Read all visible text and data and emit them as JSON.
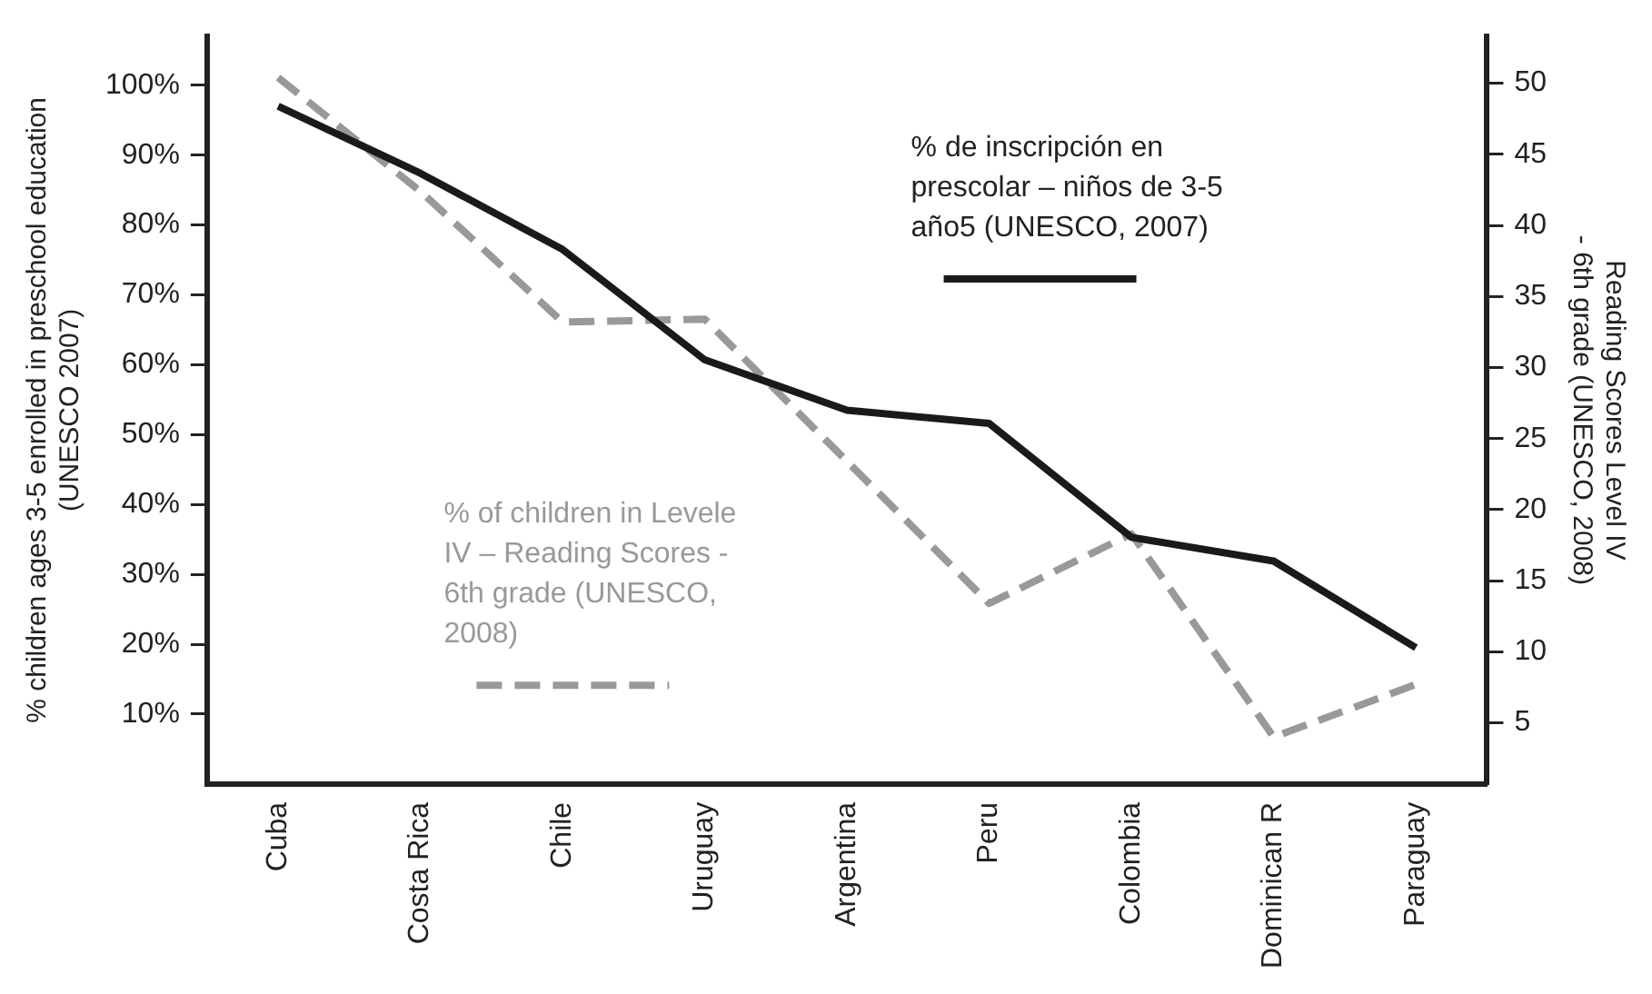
{
  "chart_data": {
    "type": "line",
    "categories": [
      "Cuba",
      "Costa Rica",
      "Chile",
      "Uruguay",
      "Argentina",
      "Peru",
      "Colombia",
      "Dominican R",
      "Paraguay"
    ],
    "ylabel": "% children ages 3-5 enrolled in preschool education\n(UNESCO 2007)",
    "y2label": "Reading Scores Level IV\n- 6th grade (UNESCO, 2008)",
    "ylim": [
      0,
      107
    ],
    "yticks": [
      {
        "value": 10,
        "label": "10%"
      },
      {
        "value": 20,
        "label": "20%"
      },
      {
        "value": 30,
        "label": "30%"
      },
      {
        "value": 40,
        "label": "40%"
      },
      {
        "value": 50,
        "label": "50%"
      },
      {
        "value": 60,
        "label": "60%"
      },
      {
        "value": 70,
        "label": "70%"
      },
      {
        "value": 80,
        "label": "80%"
      },
      {
        "value": 90,
        "label": "90%"
      },
      {
        "value": 100,
        "label": "100%"
      }
    ],
    "y2lim": [
      0.7,
      53.3
    ],
    "y2ticks": [
      5,
      10,
      15,
      20,
      25,
      30,
      35,
      40,
      45,
      50
    ],
    "grid": false,
    "legend": "top right",
    "marker": "none",
    "series": [
      {
        "name": "% de inscripción en prescolar – niños de 3-5 año5 (UNESCO, 2007)",
        "color": "#1a1a1a",
        "line_style": "solid",
        "values": [
          97,
          87.4,
          76.5,
          60.7,
          53.5,
          51.6,
          35.3,
          31.9,
          19.5
        ]
      },
      {
        "name": "% of children in Levele IV – Reading Scores - 6th grade (UNESCO, 2008)",
        "color": "#999999",
        "line_style": "dashed",
        "axis": "y2",
        "values": [
          50.4,
          42.4,
          33.2,
          33.4,
          23.4,
          13.4,
          18.3,
          4.0,
          7.7
        ]
      }
    ]
  }
}
